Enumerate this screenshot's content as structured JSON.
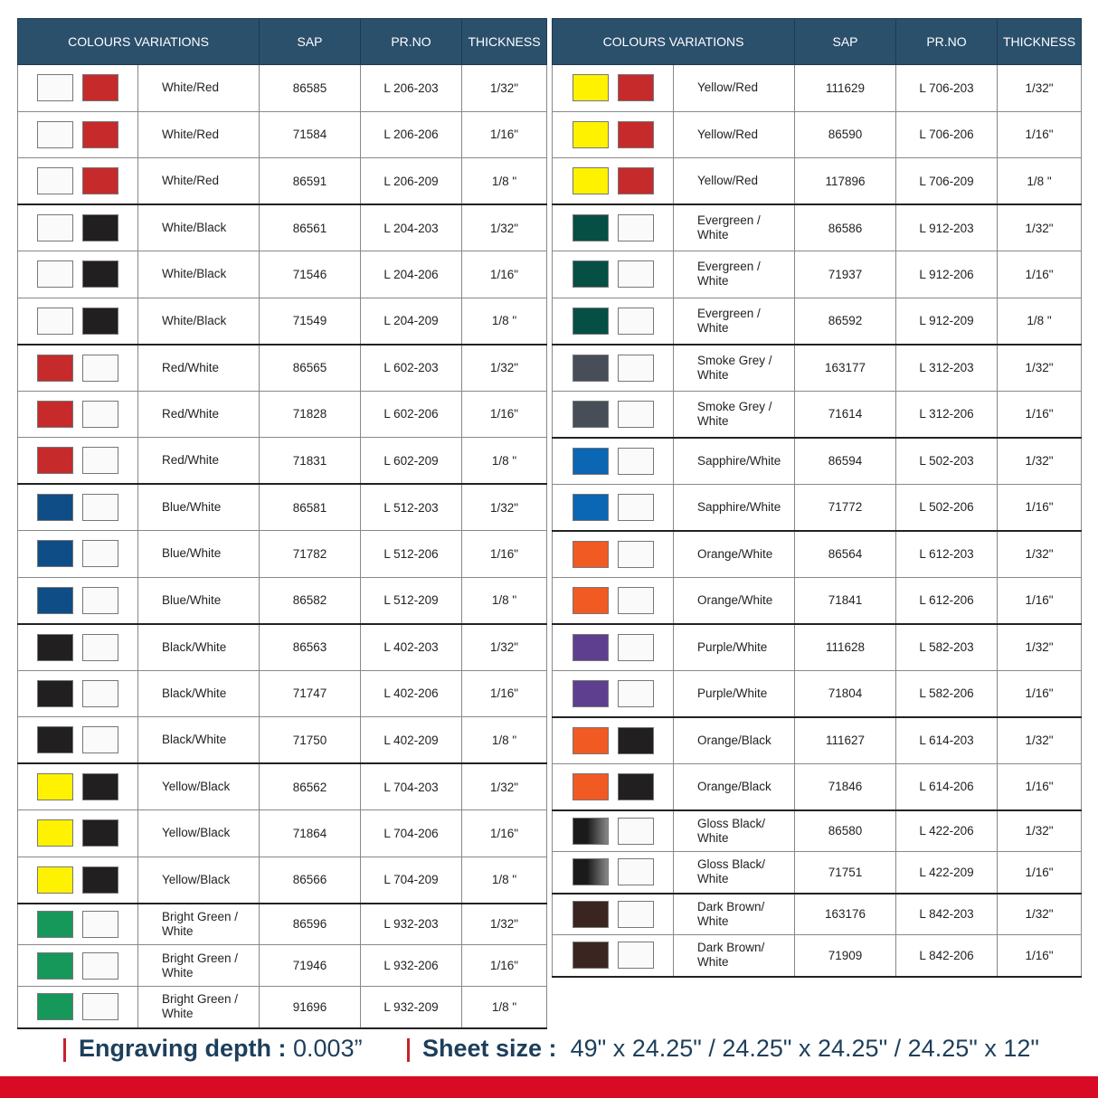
{
  "headers": [
    "COLOURS VARIATIONS",
    "SAP",
    "PR.NO",
    "THICKNESS"
  ],
  "colors": {
    "white": "#fafafa",
    "red": "#c62a2a",
    "black": "#221f20",
    "blue": "#0f4d86",
    "yellow": "#fff200",
    "green": "#16985a",
    "evergreen": "#064f45",
    "smoke": "#474e57",
    "sapphire": "#0b66b3",
    "orange": "#f15a22",
    "purple": "#5e3f8f",
    "gloss": "linear-gradient(90deg,#1a1a1a 40%,#888)",
    "brown": "#3b2520",
    "highlight": "#2b3a9c",
    "header_bg": "#2b506c",
    "footer_bar": "#d80a24"
  },
  "left_table": [
    {
      "c1": "white",
      "c2": "red",
      "name": "White/Red",
      "sap": "86585",
      "prno": "L 206-203",
      "thickness": "1/32\"",
      "group_start": true
    },
    {
      "c1": "white",
      "c2": "red",
      "name": "White/Red",
      "sap": "71584",
      "prno": "L 206-206",
      "thickness": "1/16\""
    },
    {
      "c1": "white",
      "c2": "red",
      "name": "White/Red",
      "sap": "86591",
      "prno": "L 206-209",
      "thickness": "1/8 \""
    },
    {
      "c1": "white",
      "c2": "black",
      "name": "White/Black",
      "sap": "86561",
      "prno": "L 204-203",
      "thickness": "1/32\"",
      "group_start": true
    },
    {
      "c1": "white",
      "c2": "black",
      "name": "White/Black",
      "sap": "71546",
      "prno": "L 204-206",
      "thickness": "1/16\""
    },
    {
      "c1": "white",
      "c2": "black",
      "name": "White/Black",
      "sap": "71549",
      "prno": "L 204-209",
      "thickness": "1/8 \""
    },
    {
      "c1": "red",
      "c2": "white",
      "name": "Red/White",
      "sap": "86565",
      "prno": "L 602-203",
      "thickness": "1/32\"",
      "group_start": true
    },
    {
      "c1": "red",
      "c2": "white",
      "name": "Red/White",
      "sap": "71828",
      "prno": "L 602-206",
      "thickness": "1/16\""
    },
    {
      "c1": "red",
      "c2": "white",
      "name": "Red/White",
      "sap": "71831",
      "prno": "L 602-209",
      "thickness": "1/8 \""
    },
    {
      "c1": "blue",
      "c2": "white",
      "name": "Blue/White",
      "sap": "86581",
      "prno": "L 512-203",
      "thickness": "1/32\"",
      "group_start": true
    },
    {
      "c1": "blue",
      "c2": "white",
      "name": "Blue/White",
      "sap": "71782",
      "prno": "L 512-206",
      "thickness": "1/16\""
    },
    {
      "c1": "blue",
      "c2": "white",
      "name": "Blue/White",
      "sap": "86582",
      "prno": "L 512-209",
      "thickness": "1/8 \""
    },
    {
      "c1": "black",
      "c2": "white",
      "name": "Black/White",
      "sap": "86563",
      "prno": "L 402-203",
      "thickness": "1/32\"",
      "group_start": true
    },
    {
      "c1": "black",
      "c2": "white",
      "name": "Black/White",
      "sap": "71747",
      "prno": "L 402-206",
      "thickness": "1/16\""
    },
    {
      "c1": "black",
      "c2": "white",
      "name": "Black/White",
      "sap": "71750",
      "prno": "L 402-209",
      "thickness": "1/8 \""
    },
    {
      "c1": "yellow",
      "c2": "black",
      "name": "Yellow/Black",
      "sap": "86562",
      "prno": "L 704-203",
      "thickness": "1/32\"",
      "group_start": true
    },
    {
      "c1": "yellow",
      "c2": "black",
      "name": "Yellow/Black",
      "sap": "71864",
      "prno": "L 704-206",
      "thickness": "1/16\""
    },
    {
      "c1": "yellow",
      "c2": "black",
      "name": "Yellow/Black",
      "sap": "86566",
      "prno": "L 704-209",
      "thickness": "1/8 \""
    },
    {
      "c1": "green",
      "c2": "white",
      "name": "Bright Green / White",
      "sap": "86596",
      "prno": "L 932-203",
      "thickness": "1/32\"",
      "group_start": true,
      "short": true
    },
    {
      "c1": "green",
      "c2": "white",
      "name": "Bright Green / White",
      "sap": "71946",
      "prno": "L 932-206",
      "thickness": "1/16\"",
      "short": true
    },
    {
      "c1": "green",
      "c2": "white",
      "name": "Bright Green / White",
      "sap": "91696",
      "prno": "L 932-209",
      "thickness": "1/8 \"",
      "short": true
    }
  ],
  "right_table": [
    {
      "c1": "yellow",
      "c2": "red",
      "name": "Yellow/Red",
      "sap": "111629",
      "prno": "L 706-203",
      "thickness": "1/32\"",
      "group_start": true,
      "highlight": true
    },
    {
      "c1": "yellow",
      "c2": "red",
      "name": "Yellow/Red",
      "sap": "86590",
      "prno": "L 706-206",
      "thickness": "1/16\""
    },
    {
      "c1": "yellow",
      "c2": "red",
      "name": "Yellow/Red",
      "sap": "117896",
      "prno": "L 706-209",
      "thickness": "1/8 \"",
      "highlight": true
    },
    {
      "c1": "evergreen",
      "c2": "white",
      "name": "Evergreen / White",
      "sap": "86586",
      "prno": "L 912-203",
      "thickness": "1/32\"",
      "group_start": true
    },
    {
      "c1": "evergreen",
      "c2": "white",
      "name": "Evergreen / White",
      "sap": "71937",
      "prno": "L 912-206",
      "thickness": "1/16\""
    },
    {
      "c1": "evergreen",
      "c2": "white",
      "name": "Evergreen / White",
      "sap": "86592",
      "prno": "L 912-209",
      "thickness": "1/8 \""
    },
    {
      "c1": "smoke",
      "c2": "white",
      "name": "Smoke Grey / White",
      "sap": "163177",
      "prno": "L 312-203",
      "thickness": "1/32\"",
      "group_start": true
    },
    {
      "c1": "smoke",
      "c2": "white",
      "name": "Smoke Grey / White",
      "sap": "71614",
      "prno": "L 312-206",
      "thickness": "1/16\""
    },
    {
      "c1": "sapphire",
      "c2": "white",
      "name": "Sapphire/White",
      "sap": "86594",
      "prno": "L 502-203",
      "thickness": "1/32\"",
      "group_start": true
    },
    {
      "c1": "sapphire",
      "c2": "white",
      "name": "Sapphire/White",
      "sap": "71772",
      "prno": "L 502-206",
      "thickness": "1/16\""
    },
    {
      "c1": "orange",
      "c2": "white",
      "name": "Orange/White",
      "sap": "86564",
      "prno": "L 612-203",
      "thickness": "1/32\"",
      "group_start": true
    },
    {
      "c1": "orange",
      "c2": "white",
      "name": "Orange/White",
      "sap": "71841",
      "prno": "L 612-206",
      "thickness": "1/16\""
    },
    {
      "c1": "purple",
      "c2": "white",
      "name": "Purple/White",
      "sap": "111628",
      "prno": "L 582-203",
      "thickness": "1/32\"",
      "group_start": true,
      "highlight": true
    },
    {
      "c1": "purple",
      "c2": "white",
      "name": "Purple/White",
      "sap": "71804",
      "prno": "L 582-206",
      "thickness": "1/16\""
    },
    {
      "c1": "orange",
      "c2": "black",
      "name": "Orange/Black",
      "sap": "111627",
      "prno": "L 614-203",
      "thickness": "1/32\"",
      "group_start": true,
      "highlight": true
    },
    {
      "c1": "orange",
      "c2": "black",
      "name": "Orange/Black",
      "sap": "71846",
      "prno": "L 614-206",
      "thickness": "1/16\""
    },
    {
      "c1": "gloss",
      "c2": "white",
      "name": "Gloss Black/ White",
      "sap": "86580",
      "prno": "L 422-206",
      "thickness": "1/32\"",
      "group_start": true,
      "short": true
    },
    {
      "c1": "gloss",
      "c2": "white",
      "name": "Gloss Black/ White",
      "sap": "71751",
      "prno": "L 422-209",
      "thickness": "1/16\"",
      "short": true
    },
    {
      "c1": "brown",
      "c2": "white",
      "name": "Dark Brown/ White",
      "sap": "163176",
      "prno": "L 842-203",
      "thickness": "1/32\"",
      "group_start": true,
      "short": true
    },
    {
      "c1": "brown",
      "c2": "white",
      "name": "Dark Brown/ White",
      "sap": "71909",
      "prno": "L 842-206",
      "thickness": "1/16\"",
      "short": true
    }
  ],
  "footer": {
    "engraving_label": "Engraving depth :",
    "engraving_value": "0.003”",
    "sheet_label": "Sheet size :",
    "sheet_value": "49\" x 24.25\" / 24.25\" x 24.25\" / 24.25\" x 12\""
  }
}
